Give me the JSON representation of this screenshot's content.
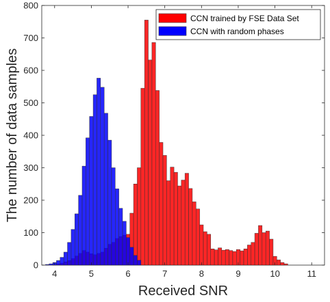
{
  "chart_data": {
    "type": "bar",
    "xlabel": "Received SNR",
    "ylabel": "The number of data samples",
    "xlim": [
      3.65,
      11.35
    ],
    "ylim": [
      0,
      800
    ],
    "xticks": [
      4,
      5,
      6,
      7,
      8,
      9,
      10,
      11
    ],
    "yticks": [
      0,
      100,
      200,
      300,
      400,
      500,
      600,
      700,
      800
    ],
    "bin_width": 0.1,
    "grid": false,
    "legend_position": "top-right",
    "series": [
      {
        "name": "CCN trained by FSE Data Set",
        "color": "#ff0000",
        "x": [
          4.0,
          4.1,
          4.2,
          4.3,
          4.4,
          4.5,
          4.6,
          4.7,
          4.8,
          4.9,
          5.0,
          5.1,
          5.2,
          5.3,
          5.4,
          5.5,
          5.6,
          5.7,
          5.8,
          5.9,
          6.0,
          6.1,
          6.2,
          6.3,
          6.4,
          6.5,
          6.6,
          6.7,
          6.8,
          6.9,
          7.0,
          7.1,
          7.2,
          7.3,
          7.4,
          7.5,
          7.6,
          7.7,
          7.8,
          7.9,
          8.0,
          8.1,
          8.2,
          8.3,
          8.4,
          8.5,
          8.6,
          8.7,
          8.8,
          8.9,
          9.0,
          9.1,
          9.2,
          9.3,
          9.4,
          9.5,
          9.6,
          9.7,
          9.8,
          9.9,
          10.0,
          10.1,
          10.2,
          10.3
        ],
        "values": [
          2,
          4,
          6,
          10,
          14,
          20,
          28,
          36,
          45,
          40,
          35,
          32,
          36,
          40,
          52,
          64,
          70,
          82,
          88,
          92,
          95,
          160,
          250,
          300,
          545,
          755,
          632,
          686,
          538,
          378,
          338,
          260,
          302,
          286,
          244,
          262,
          283,
          236,
          195,
          173,
          124,
          103,
          95,
          50,
          47,
          53,
          46,
          48,
          45,
          42,
          48,
          44,
          50,
          62,
          70,
          98,
          122,
          100,
          105,
          80,
          27,
          16,
          8,
          4
        ]
      },
      {
        "name": "CCN with random phases",
        "color": "#0000ff",
        "x": [
          3.8,
          3.9,
          4.0,
          4.1,
          4.2,
          4.3,
          4.4,
          4.5,
          4.6,
          4.7,
          4.8,
          4.9,
          5.0,
          5.1,
          5.2,
          5.3,
          5.4,
          5.5,
          5.6,
          5.7,
          5.8,
          5.9,
          6.0,
          6.1,
          6.2,
          6.3
        ],
        "values": [
          2,
          4,
          8,
          14,
          24,
          40,
          70,
          110,
          158,
          215,
          305,
          392,
          458,
          525,
          576,
          548,
          468,
          385,
          300,
          235,
          175,
          135,
          85,
          55,
          30,
          15
        ]
      }
    ]
  }
}
